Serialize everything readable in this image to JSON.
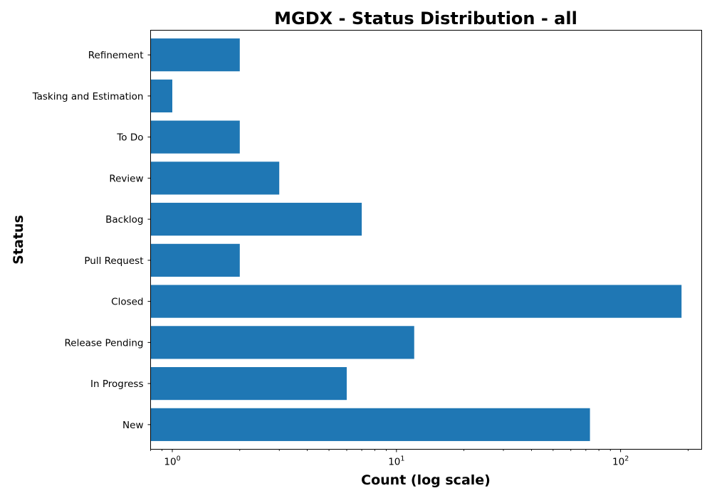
{
  "chart_data": {
    "type": "bar",
    "orientation": "horizontal",
    "title": "MGDX - Status Distribution - all",
    "xlabel": "Count (log scale)",
    "ylabel": "Status",
    "xscale": "log",
    "xlim": [
      0.8,
      230
    ],
    "categories": [
      "New",
      "In Progress",
      "Release Pending",
      "Closed",
      "Pull Request",
      "Backlog",
      "Review",
      "To Do",
      "Tasking and Estimation",
      "Refinement"
    ],
    "values": [
      73,
      6,
      12,
      187,
      2,
      7,
      3,
      2,
      1,
      2
    ],
    "xticks": [
      {
        "base": "10",
        "exp": "0",
        "value": 1
      },
      {
        "base": "10",
        "exp": "1",
        "value": 10
      },
      {
        "base": "10",
        "exp": "2",
        "value": 100
      }
    ],
    "bar_color": "#1f77b4",
    "grid": false,
    "legend": "none"
  }
}
